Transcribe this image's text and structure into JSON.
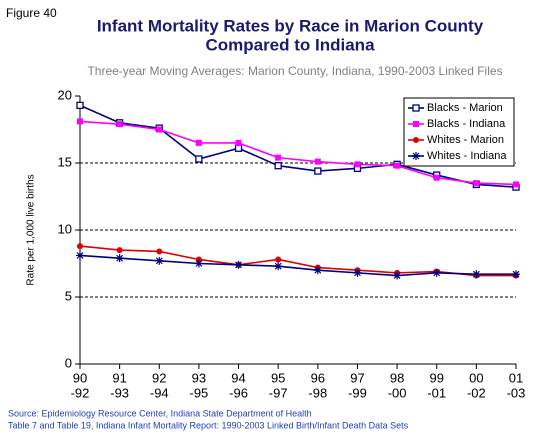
{
  "figure_label": "Figure 40",
  "chart_data": {
    "type": "line",
    "title": [
      "Infant Mortality Rates by Race in Marion County",
      "Compared to Indiana"
    ],
    "subtitle": "Three-year Moving Averages: Marion County, Indiana, 1990-2003 Linked Files",
    "y_label": "Rate per 1,000 live births",
    "categories": [
      [
        "90",
        "-92"
      ],
      [
        "91",
        "-93"
      ],
      [
        "92",
        "-94"
      ],
      [
        "93",
        "-95"
      ],
      [
        "94",
        "-96"
      ],
      [
        "95",
        "-97"
      ],
      [
        "96",
        "-98"
      ],
      [
        "97",
        "-99"
      ],
      [
        "98",
        "-00"
      ],
      [
        "99",
        "-01"
      ],
      [
        "00",
        "-02"
      ],
      [
        "01",
        "-03"
      ]
    ],
    "series": [
      {
        "name": "Blacks - Marion",
        "color": "#000080",
        "marker": "square-open",
        "values": [
          19.3,
          18.0,
          17.6,
          15.3,
          16.1,
          14.8,
          14.4,
          14.6,
          14.9,
          14.1,
          13.4,
          13.2
        ]
      },
      {
        "name": "Blacks - Indiana",
        "color": "#ff00ff",
        "marker": "square",
        "values": [
          18.1,
          17.9,
          17.5,
          16.5,
          16.5,
          15.4,
          15.1,
          14.9,
          14.8,
          13.9,
          13.5,
          13.4
        ]
      },
      {
        "name": "Whites - Marion",
        "color": "#e00000",
        "marker": "circle",
        "values": [
          8.8,
          8.5,
          8.4,
          7.8,
          7.4,
          7.8,
          7.2,
          7.0,
          6.8,
          6.9,
          6.6,
          6.6
        ]
      },
      {
        "name": "Whites - Indiana",
        "color": "#000080",
        "marker": "star",
        "values": [
          8.1,
          7.9,
          7.7,
          7.5,
          7.4,
          7.3,
          7.0,
          6.8,
          6.6,
          6.8,
          6.7,
          6.7
        ]
      }
    ],
    "ylim": [
      0,
      20
    ],
    "yticks": [
      0,
      5,
      10,
      15,
      20
    ],
    "grid": true,
    "legend": "top-right",
    "source": [
      "Source: Epidemiology Resource Center, Indiana State Department of Health",
      "Table 7 and Table 19, Indiana Infant Mortality Report: 1990-2003 Linked Birth/Infant Death Data Sets"
    ]
  }
}
